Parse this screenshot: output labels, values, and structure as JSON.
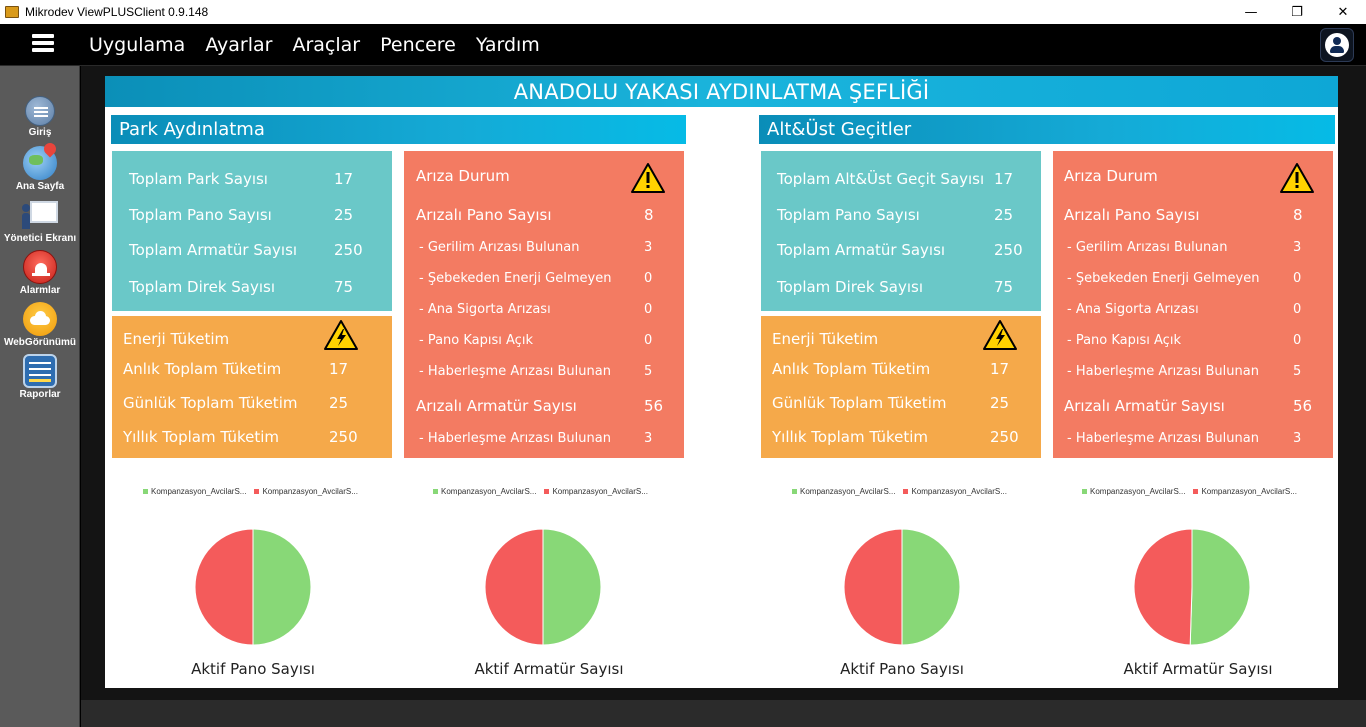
{
  "window": {
    "title": "Mikrodev ViewPLUSClient 0.9.148",
    "minimize": "—",
    "maximize": "❐",
    "close": "✕"
  },
  "menu": {
    "items": [
      "Uygulama",
      "Ayarlar",
      "Araçlar",
      "Pencere",
      "Yardım"
    ]
  },
  "sidebar": {
    "items": [
      {
        "label": "Giriş",
        "icon": "login-icon"
      },
      {
        "label": "Ana Sayfa",
        "icon": "globe-pin-icon"
      },
      {
        "label": "Yönetici Ekranı",
        "icon": "presentation-icon"
      },
      {
        "label": "Alarmlar",
        "icon": "siren-icon"
      },
      {
        "label": "WebGörünümü",
        "icon": "cloud-icon"
      },
      {
        "label": "Raporlar",
        "icon": "report-chart-icon"
      }
    ]
  },
  "dashboard": {
    "title": "ANADOLU YAKASI AYDINLATMA ŞEFLİĞİ",
    "colors": {
      "teal": "#6ac8c8",
      "orange": "#f5a94a",
      "salmon": "#f37b62",
      "green": "#88d877",
      "red": "#f45b5b"
    },
    "sections": [
      {
        "title": "Park Aydınlatma",
        "totals": [
          {
            "label": "Toplam Park Sayısı",
            "value": "17"
          },
          {
            "label": "Toplam Pano Sayısı",
            "value": "25"
          },
          {
            "label": "Toplam Armatür Sayısı",
            "value": "250"
          },
          {
            "label": "Toplam Direk Sayısı",
            "value": "75"
          }
        ],
        "energy": {
          "title": "Enerji Tüketim",
          "rows": [
            {
              "label": "Anlık Toplam Tüketim",
              "value": "17"
            },
            {
              "label": "Günlük Toplam Tüketim",
              "value": "25"
            },
            {
              "label": "Yıllık Toplam Tüketim",
              "value": "250"
            }
          ]
        },
        "faults": {
          "title": "Arıza Durum",
          "pano_label": "Arızalı Pano Sayısı",
          "pano_value": "8",
          "pano_rows": [
            {
              "label": "- Gerilim Arızası Bulunan",
              "value": "3"
            },
            {
              "label": "- Şebekeden Enerji Gelmeyen",
              "value": "0"
            },
            {
              "label": "- Ana Sigorta Arızası",
              "value": "0"
            },
            {
              "label": "- Pano Kapısı Açık",
              "value": "0"
            },
            {
              "label": "- Haberleşme Arızası Bulunan",
              "value": "5"
            }
          ],
          "armatur_label": "Arızalı Armatür Sayısı",
          "armatur_value": "56",
          "armatur_rows": [
            {
              "label": "- Haberleşme Arızası Bulunan",
              "value": "3"
            }
          ]
        },
        "charts": [
          {
            "legend": [
              "Kompanzasyon_AvcilarS...",
              "Kompanzasyon_AvcilarS..."
            ],
            "label": "Aktif Pano Sayısı"
          },
          {
            "legend": [
              "Kompanzasyon_AvcilarS...",
              "Kompanzasyon_AvcilarS..."
            ],
            "label": "Aktif Armatür Sayısı"
          }
        ]
      },
      {
        "title": "Alt&Üst Geçitler",
        "totals": [
          {
            "label": "Toplam Alt&Üst Geçit Sayısı",
            "value": "17"
          },
          {
            "label": "Toplam Pano Sayısı",
            "value": "25"
          },
          {
            "label": "Toplam Armatür Sayısı",
            "value": "250"
          },
          {
            "label": "Toplam Direk Sayısı",
            "value": "75"
          }
        ],
        "energy": {
          "title": "Enerji Tüketim",
          "rows": [
            {
              "label": "Anlık Toplam Tüketim",
              "value": "17"
            },
            {
              "label": "Günlük Toplam Tüketim",
              "value": "25"
            },
            {
              "label": "Yıllık Toplam Tüketim",
              "value": "250"
            }
          ]
        },
        "faults": {
          "title": "Arıza Durum",
          "pano_label": "Arızalı Pano Sayısı",
          "pano_value": "8",
          "pano_rows": [
            {
              "label": "- Gerilim Arızası Bulunan",
              "value": "3"
            },
            {
              "label": "- Şebekeden Enerji Gelmeyen",
              "value": "0"
            },
            {
              "label": "- Ana Sigorta Arızası",
              "value": "0"
            },
            {
              "label": "- Pano Kapısı Açık",
              "value": "0"
            },
            {
              "label": "- Haberleşme Arızası Bulunan",
              "value": "5"
            }
          ],
          "armatur_label": "Arızalı Armatür Sayısı",
          "armatur_value": "56",
          "armatur_rows": [
            {
              "label": "- Haberleşme Arızası Bulunan",
              "value": "3"
            }
          ]
        },
        "charts": [
          {
            "legend": [
              "Kompanzasyon_AvcilarS...",
              "Kompanzasyon_AvcilarS..."
            ],
            "label": "Aktif Pano Sayısı"
          },
          {
            "legend": [
              "Kompanzasyon_AvcilarS...",
              "Kompanzasyon_AvcilarS..."
            ],
            "label": "Aktif Armatür Sayısı"
          }
        ]
      }
    ]
  },
  "chart_data": [
    {
      "type": "pie",
      "title": "Aktif Pano Sayısı",
      "series": [
        {
          "name": "Kompanzasyon_AvcilarS...",
          "value": 50,
          "color": "#88d877"
        },
        {
          "name": "Kompanzasyon_AvcilarS...",
          "value": 50,
          "color": "#f45b5b"
        }
      ]
    },
    {
      "type": "pie",
      "title": "Aktif Armatür Sayısı",
      "series": [
        {
          "name": "Kompanzasyon_AvcilarS...",
          "value": 50,
          "color": "#88d877"
        },
        {
          "name": "Kompanzasyon_AvcilarS...",
          "value": 50,
          "color": "#f45b5b"
        }
      ]
    },
    {
      "type": "pie",
      "title": "Aktif Pano Sayısı",
      "series": [
        {
          "name": "Kompanzasyon_AvcilarS...",
          "value": 50,
          "color": "#88d877"
        },
        {
          "name": "Kompanzasyon_AvcilarS...",
          "value": 50,
          "color": "#f45b5b"
        }
      ]
    },
    {
      "type": "pie",
      "title": "Aktif Armatür Sayısı",
      "series": [
        {
          "name": "Kompanzasyon_AvcilarS...",
          "value": 50.5,
          "color": "#88d877"
        },
        {
          "name": "Kompanzasyon_AvcilarS...",
          "value": 49.5,
          "color": "#f45b5b"
        }
      ]
    }
  ]
}
